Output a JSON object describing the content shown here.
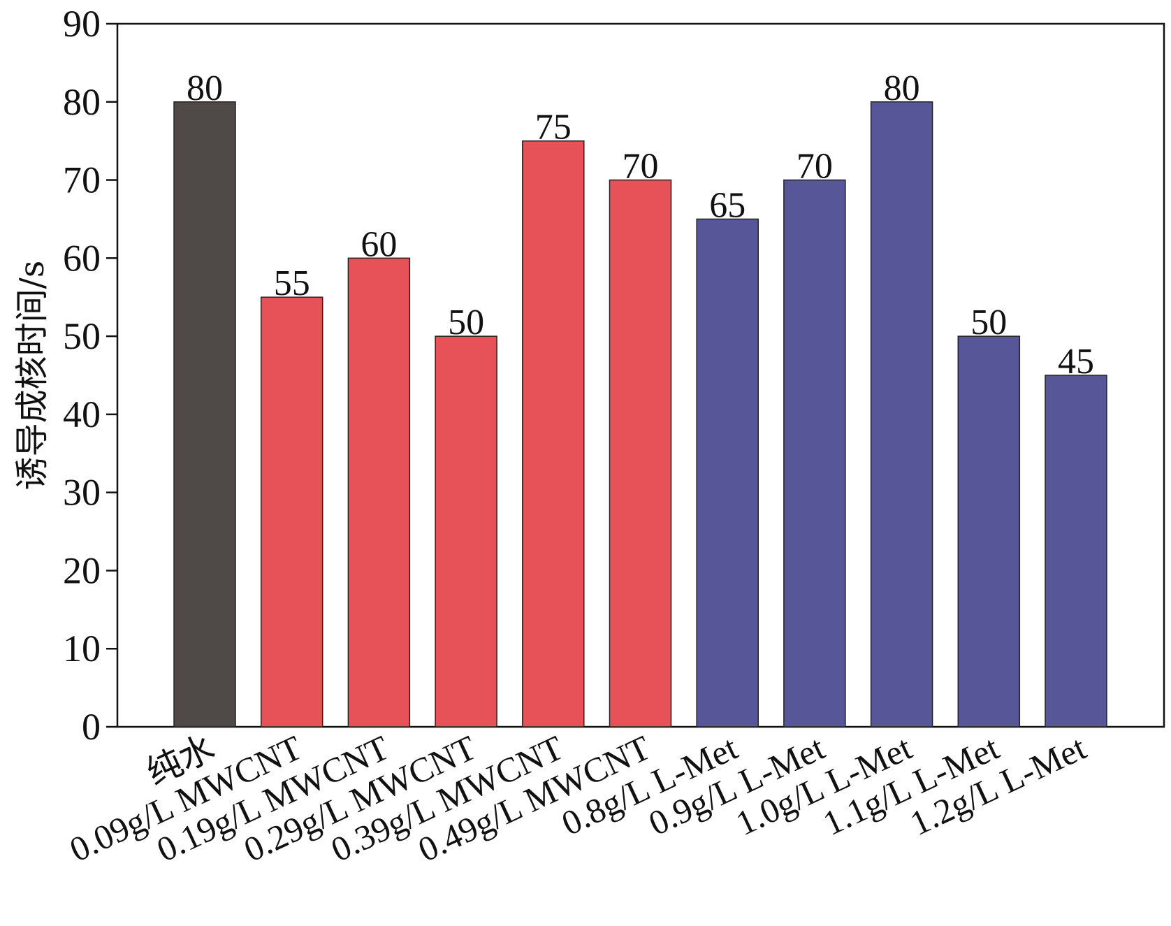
{
  "chart_data": {
    "type": "bar",
    "title": "",
    "xlabel": "",
    "ylabel": "诱导成核时间/s",
    "ylim": [
      0,
      90
    ],
    "yticks": [
      0,
      10,
      20,
      30,
      40,
      50,
      60,
      70,
      80,
      90
    ],
    "categories": [
      "纯水",
      "0.09g/L MWCNT",
      "0.19g/L MWCNT",
      "0.29g/L MWCNT",
      "0.39g/L MWCNT",
      "0.49g/L MWCNT",
      "0.8g/L L-Met",
      "0.9g/L L-Met",
      "1.0g/L L-Met",
      "1.1g/L L-Met",
      "1.2g/L L-Met"
    ],
    "values": [
      80,
      55,
      60,
      50,
      75,
      70,
      65,
      70,
      80,
      50,
      45
    ],
    "bar_colors": [
      "#4f4a47",
      "#e65257",
      "#e65257",
      "#e65257",
      "#e65257",
      "#e65257",
      "#565699",
      "#565699",
      "#565699",
      "#565699",
      "#565699"
    ],
    "grid": false,
    "legend": "none"
  }
}
